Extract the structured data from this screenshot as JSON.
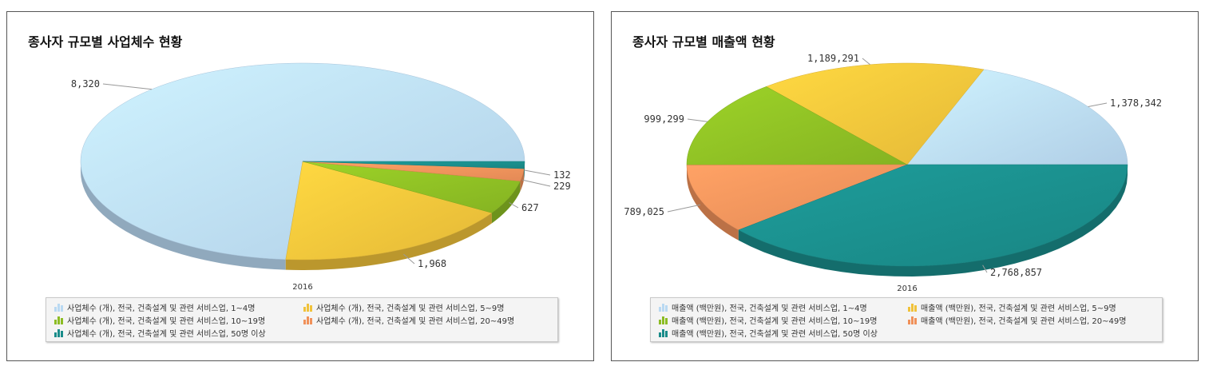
{
  "charts": [
    {
      "title": "종사자 규모별 사업체수 현황",
      "year_label": "2016",
      "chart_data": {
        "type": "pie",
        "title": "종사자 규모별 사업체수 현황",
        "category": "2016",
        "slices": [
          {
            "name": "사업체수 (개), 전국, 건축설계 및 관련 서비스업, 1~4명",
            "value": 8320,
            "label": "8,320",
            "color": "#b9d9f2"
          },
          {
            "name": "사업체수 (개), 전국, 건축설계 및 관련 서비스업, 5~9명",
            "value": 1968,
            "label": "1,968",
            "color": "#f0c23a"
          },
          {
            "name": "사업체수 (개), 전국, 건축설계 및 관련 서비스업, 10~19명",
            "value": 627,
            "label": "627",
            "color": "#8cbc24"
          },
          {
            "name": "사업체수 (개), 전국, 건축설계 및 관련 서비스업, 20~49명",
            "value": 229,
            "label": "229",
            "color": "#f0915a"
          },
          {
            "name": "사업체수 (개), 전국, 건축설계 및 관련 서비스업, 50명 이상",
            "value": 132,
            "label": "132",
            "color": "#1a8c8a"
          }
        ],
        "legend_position": "bottom"
      }
    },
    {
      "title": "종사자 규모별 매출액 현황",
      "year_label": "2016",
      "chart_data": {
        "type": "pie",
        "title": "종사자 규모별 매출액 현황",
        "category": "2016",
        "slices": [
          {
            "name": "매출액 (백만원), 전국, 건축설계 및 관련 서비스업, 1~4명",
            "value": 1378342,
            "label": "1,378,342",
            "color": "#b9d9f2"
          },
          {
            "name": "매출액 (백만원), 전국, 건축설계 및 관련 서비스업, 5~9명",
            "value": 1189291,
            "label": "1,189,291",
            "color": "#f0c23a"
          },
          {
            "name": "매출액 (백만원), 전국, 건축설계 및 관련 서비스업, 10~19명",
            "value": 999299,
            "label": "999,299",
            "color": "#8cbc24"
          },
          {
            "name": "매출액 (백만원), 전국, 건축설계 및 관련 서비스업, 20~49명",
            "value": 789025,
            "label": "789,025",
            "color": "#f0915a"
          },
          {
            "name": "매출액 (백만원), 전국, 건축설계 및 관련 서비스업, 50명 이상",
            "value": 2768857,
            "label": "2,768,857",
            "color": "#1a8c8a"
          }
        ],
        "legend_position": "bottom"
      }
    }
  ]
}
